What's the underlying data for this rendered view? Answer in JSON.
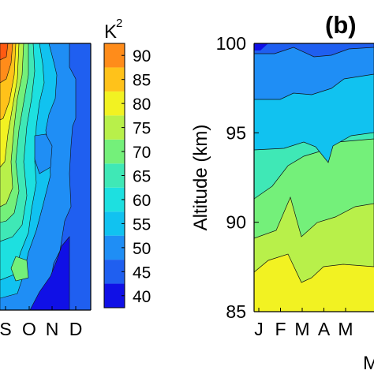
{
  "chart_data": [
    {
      "type": "heatmap",
      "subtype": "filled-contour",
      "panel": "left (cropped)",
      "x_tick_labels": [
        "S",
        "O",
        "N",
        "D"
      ],
      "colorbar": {
        "unit_label": "K",
        "unit_superscript": "2",
        "ticks": [
          90,
          85,
          80,
          75,
          70,
          65,
          60,
          55,
          50,
          45,
          40
        ],
        "levels": [
          37.5,
          42.5,
          47.5,
          52.5,
          57.5,
          62.5,
          67.5,
          72.5,
          77.5,
          82.5,
          87.5,
          92.5
        ],
        "colors": [
          "#1010e6",
          "#1f5ff0",
          "#1f8ef5",
          "#11c2f0",
          "#1de0e0",
          "#3fe8b6",
          "#74f07a",
          "#b8f04a",
          "#f2f222",
          "#ffc21a",
          "#ff8c1a",
          "#ff5a12"
        ]
      },
      "band_order_low_to_high": [
        "40",
        "45",
        "50",
        "55",
        "60",
        "65",
        "70",
        "75",
        "80",
        "85",
        "90"
      ]
    },
    {
      "type": "heatmap",
      "subtype": "filled-contour",
      "panel_label": "(b)",
      "ylabel": "Altitude (km)",
      "xlabel_visible": "M",
      "y_ticks": [
        100,
        95,
        90,
        85
      ],
      "ylim": [
        85,
        100
      ],
      "x_tick_labels": [
        "J",
        "F",
        "M",
        "A",
        "M"
      ],
      "bands_bottom_to_top": [
        "yellow",
        "yellow-green",
        "green",
        "aqua-green",
        "light blue",
        "mid blue",
        "dark blue"
      ],
      "band_colors": [
        "#f2f222",
        "#b8f04a",
        "#74f07a",
        "#3fe8b6",
        "#1f8ef5",
        "#1f5ff0",
        "#1010e6"
      ]
    }
  ]
}
